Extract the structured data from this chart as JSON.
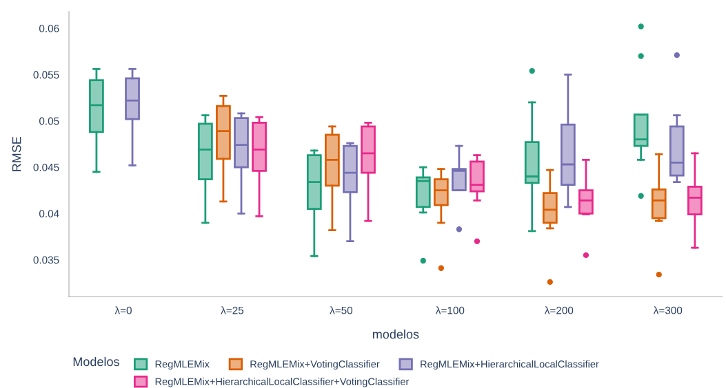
{
  "chart_data": {
    "type": "box",
    "xlabel": "modelos",
    "ylabel": "RMSE",
    "legend_title": "Modelos",
    "legend": "bottom",
    "grid": false,
    "categories": [
      "λ=0",
      "λ=25",
      "λ=50",
      "λ=100",
      "λ=200",
      "λ=300"
    ],
    "ylim": [
      0.031,
      0.0618
    ],
    "yticks": [
      0.035,
      0.04,
      0.045,
      0.05,
      0.055,
      0.06
    ],
    "series": [
      {
        "name": "RegMLEMix",
        "color": "#1b9e77",
        "boxes": [
          {
            "low": 0.0445,
            "q1": 0.0488,
            "median": 0.0517,
            "q3": 0.0544,
            "high": 0.0556
          },
          {
            "low": 0.039,
            "q1": 0.0437,
            "median": 0.0469,
            "q3": 0.0497,
            "high": 0.0506
          },
          {
            "low": 0.0354,
            "q1": 0.0405,
            "median": 0.0434,
            "q3": 0.0463,
            "high": 0.0468
          },
          {
            "low": 0.0401,
            "q1": 0.0407,
            "median": 0.0435,
            "q3": 0.0439,
            "high": 0.045,
            "outliers": [
              0.0349
            ]
          },
          {
            "low": 0.0381,
            "q1": 0.0433,
            "median": 0.044,
            "q3": 0.0477,
            "high": 0.052,
            "outliers": [
              0.0554
            ]
          },
          {
            "low": 0.0458,
            "q1": 0.0473,
            "median": 0.048,
            "q3": 0.0507,
            "high": 0.0507,
            "outliers": [
              0.0602,
              0.057,
              0.0419
            ]
          }
        ]
      },
      {
        "name": "RegMLEMix+VotingClassifier",
        "color": "#d95f02",
        "boxes": [
          null,
          {
            "low": 0.0413,
            "q1": 0.0459,
            "median": 0.0489,
            "q3": 0.0516,
            "high": 0.0527
          },
          {
            "low": 0.0382,
            "q1": 0.043,
            "median": 0.0458,
            "q3": 0.0485,
            "high": 0.0494
          },
          {
            "low": 0.039,
            "q1": 0.0409,
            "median": 0.0425,
            "q3": 0.0437,
            "high": 0.0448,
            "outliers": [
              0.0341
            ]
          },
          {
            "low": 0.0384,
            "q1": 0.039,
            "median": 0.0404,
            "q3": 0.0422,
            "high": 0.0447,
            "outliers": [
              0.0326
            ]
          },
          {
            "low": 0.0392,
            "q1": 0.0395,
            "median": 0.0414,
            "q3": 0.0426,
            "high": 0.0464,
            "outliers": [
              0.0334
            ]
          }
        ]
      },
      {
        "name": "RegMLEMix+HierarchicalLocalClassifier",
        "color": "#7570b3",
        "boxes": [
          {
            "low": 0.0452,
            "q1": 0.0502,
            "median": 0.0522,
            "q3": 0.0546,
            "high": 0.0556
          },
          {
            "low": 0.04,
            "q1": 0.045,
            "median": 0.0474,
            "q3": 0.0503,
            "high": 0.0508
          },
          {
            "low": 0.037,
            "q1": 0.0423,
            "median": 0.0444,
            "q3": 0.0473,
            "high": 0.0476
          },
          {
            "low": 0.0425,
            "q1": 0.0425,
            "median": 0.0446,
            "q3": 0.0448,
            "high": 0.0473,
            "outliers": [
              0.0383
            ]
          },
          {
            "low": 0.0407,
            "q1": 0.0431,
            "median": 0.0453,
            "q3": 0.0496,
            "high": 0.055
          },
          {
            "low": 0.0434,
            "q1": 0.0441,
            "median": 0.0455,
            "q3": 0.0494,
            "high": 0.0506,
            "outliers": [
              0.0571
            ]
          }
        ]
      },
      {
        "name": "RegMLEMix+HierarchicalLocalClassifier+VotingClassifier",
        "color": "#e7298a",
        "boxes": [
          null,
          {
            "low": 0.0397,
            "q1": 0.0446,
            "median": 0.0469,
            "q3": 0.0498,
            "high": 0.0504
          },
          {
            "low": 0.0392,
            "q1": 0.0444,
            "median": 0.0465,
            "q3": 0.0494,
            "high": 0.0498
          },
          {
            "low": 0.0414,
            "q1": 0.0424,
            "median": 0.0431,
            "q3": 0.0456,
            "high": 0.0463,
            "outliers": [
              0.037
            ]
          },
          {
            "low": 0.0399,
            "q1": 0.04,
            "median": 0.0414,
            "q3": 0.0425,
            "high": 0.0458,
            "outliers": [
              0.0355
            ]
          },
          {
            "low": 0.0363,
            "q1": 0.0399,
            "median": 0.0417,
            "q3": 0.0429,
            "high": 0.0465
          }
        ]
      }
    ]
  }
}
